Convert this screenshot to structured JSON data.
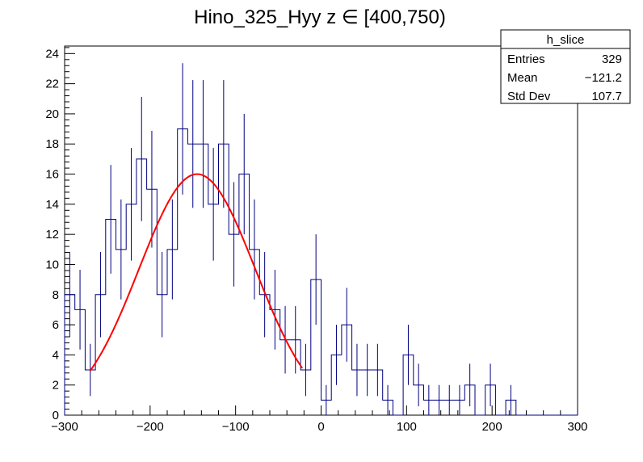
{
  "chart_data": {
    "type": "histogram",
    "title": "Hino_325_Hyy z  ∈ [400,750)",
    "xlabel": "",
    "ylabel": "",
    "xlim": [
      -300,
      300
    ],
    "ylim": [
      0,
      24.5
    ],
    "x_ticks": [
      -300,
      -200,
      -100,
      0,
      100,
      200,
      300
    ],
    "x_tick_labels": [
      "−300",
      "−200",
      "−100",
      "0",
      "100",
      "200",
      "300"
    ],
    "y_ticks": [
      0,
      2,
      4,
      6,
      8,
      10,
      12,
      14,
      16,
      18,
      20,
      22,
      24
    ],
    "y_tick_labels": [
      "0",
      "2",
      "4",
      "6",
      "8",
      "10",
      "12",
      "14",
      "16",
      "18",
      "20",
      "22",
      "24"
    ],
    "bin_width": 12,
    "bin_low_edges": [
      -300,
      -288,
      -276,
      -264,
      -252,
      -240,
      -228,
      -216,
      -204,
      -192,
      -180,
      -168,
      -156,
      -144,
      -132,
      -120,
      -108,
      -96,
      -84,
      -72,
      -60,
      -48,
      -36,
      -24,
      -12,
      0,
      12,
      24,
      36,
      48,
      60,
      72,
      84,
      96,
      108,
      120,
      132,
      144,
      156,
      168,
      180,
      192,
      204,
      216,
      228,
      240,
      252,
      264,
      276,
      288
    ],
    "counts": [
      8,
      7,
      3,
      8,
      13,
      11,
      14,
      17,
      15,
      8,
      11,
      19,
      18,
      18,
      14,
      18,
      12,
      16,
      11,
      8,
      7,
      5,
      5,
      3,
      9,
      1,
      4,
      6,
      3,
      3,
      3,
      1,
      0,
      4,
      2,
      1,
      1,
      1,
      1,
      2,
      0,
      2,
      0,
      1,
      0,
      0,
      0,
      0,
      0,
      0
    ],
    "line_color": "#00007f",
    "fit": {
      "color": "#ff0000",
      "function": "gaussian",
      "x_range": [
        -270,
        -22
      ],
      "amplitude": 16.0,
      "mean": -145,
      "sigma": 68
    },
    "stats_box": {
      "name": "h_slice",
      "rows": [
        {
          "label": "Entries",
          "value": "329"
        },
        {
          "label": "Mean",
          "value": "−121.2"
        },
        {
          "label": "Std Dev",
          "value": "107.7"
        }
      ]
    }
  }
}
